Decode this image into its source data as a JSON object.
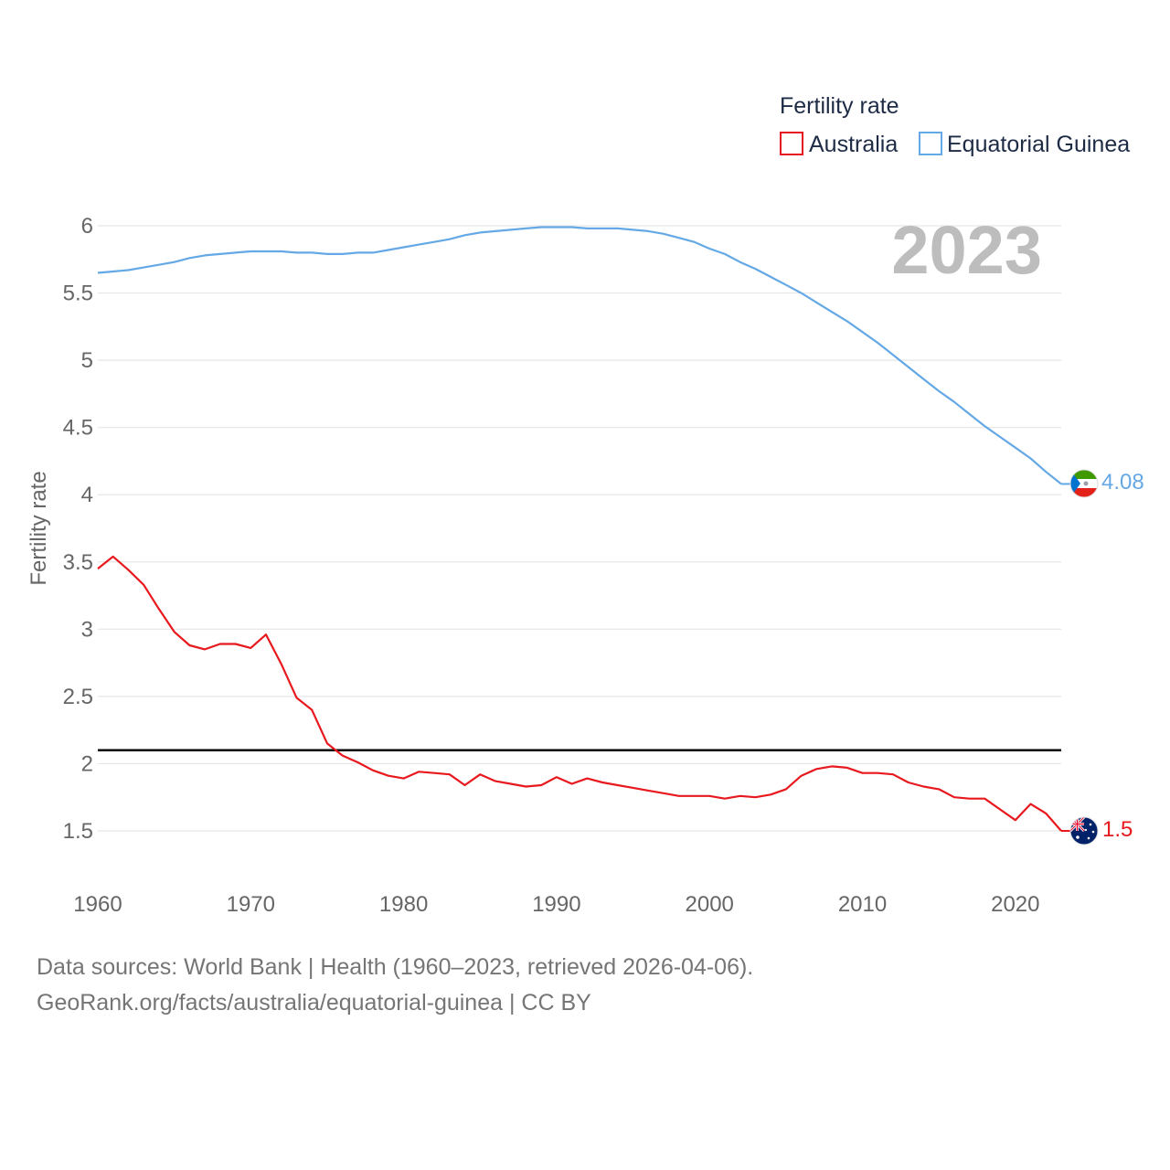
{
  "legend": {
    "title": "Fertility rate",
    "items": [
      {
        "label": "Australia",
        "color": "#e8191e"
      },
      {
        "label": "Equatorial Guinea",
        "color": "#64a8e5"
      }
    ]
  },
  "year_display": "2023",
  "footer": {
    "line1": "Data sources: World Bank | Health (1960–2023, retrieved 2026-04-06).",
    "line2": "GeoRank.org/facts/australia/equatorial-guinea | CC BY"
  },
  "chart_data": {
    "type": "line",
    "title": "Fertility rate",
    "xlabel": "",
    "ylabel": "Fertility rate",
    "xlim": [
      1960,
      2023
    ],
    "ylim": [
      1.2,
      6.15
    ],
    "x_ticks": [
      1960,
      1970,
      1980,
      1990,
      2000,
      2010,
      2020
    ],
    "y_ticks": [
      1.5,
      2,
      2.5,
      3,
      3.5,
      4,
      4.5,
      5,
      5.5,
      6
    ],
    "y_tick_labels": [
      "1.5",
      "2",
      "2.5",
      "3",
      "3.5",
      "4",
      "4.5",
      "5",
      "5.5",
      "6"
    ],
    "reference_line": {
      "y": 2.1,
      "color": "#000000"
    },
    "grid": true,
    "legend_position": "top-right",
    "x": [
      1960,
      1961,
      1962,
      1963,
      1964,
      1965,
      1966,
      1967,
      1968,
      1969,
      1970,
      1971,
      1972,
      1973,
      1974,
      1975,
      1976,
      1977,
      1978,
      1979,
      1980,
      1981,
      1982,
      1983,
      1984,
      1985,
      1986,
      1987,
      1988,
      1989,
      1990,
      1991,
      1992,
      1993,
      1994,
      1995,
      1996,
      1997,
      1998,
      1999,
      2000,
      2001,
      2002,
      2003,
      2004,
      2005,
      2006,
      2007,
      2008,
      2009,
      2010,
      2011,
      2012,
      2013,
      2014,
      2015,
      2016,
      2017,
      2018,
      2019,
      2020,
      2021,
      2022,
      2023
    ],
    "series": [
      {
        "name": "Australia",
        "color": "#e8191e",
        "end_label": "1.5",
        "values": [
          3.45,
          3.54,
          3.44,
          3.33,
          3.15,
          2.98,
          2.88,
          2.85,
          2.89,
          2.89,
          2.86,
          2.96,
          2.74,
          2.49,
          2.4,
          2.15,
          2.06,
          2.01,
          1.95,
          1.91,
          1.89,
          1.94,
          1.93,
          1.92,
          1.84,
          1.92,
          1.87,
          1.85,
          1.83,
          1.84,
          1.9,
          1.85,
          1.89,
          1.86,
          1.84,
          1.82,
          1.8,
          1.78,
          1.76,
          1.76,
          1.76,
          1.74,
          1.76,
          1.75,
          1.77,
          1.81,
          1.91,
          1.96,
          1.98,
          1.97,
          1.93,
          1.93,
          1.92,
          1.86,
          1.83,
          1.81,
          1.75,
          1.74,
          1.74,
          1.66,
          1.58,
          1.7,
          1.63,
          1.5
        ]
      },
      {
        "name": "Equatorial Guinea",
        "color": "#64a8e5",
        "end_label": "4.08",
        "values": [
          5.65,
          5.66,
          5.67,
          5.69,
          5.71,
          5.73,
          5.76,
          5.78,
          5.79,
          5.8,
          5.81,
          5.81,
          5.81,
          5.8,
          5.8,
          5.79,
          5.79,
          5.8,
          5.8,
          5.82,
          5.84,
          5.86,
          5.88,
          5.9,
          5.93,
          5.95,
          5.96,
          5.97,
          5.98,
          5.99,
          5.99,
          5.99,
          5.98,
          5.98,
          5.98,
          5.97,
          5.96,
          5.94,
          5.91,
          5.88,
          5.83,
          5.79,
          5.73,
          5.68,
          5.62,
          5.56,
          5.5,
          5.43,
          5.36,
          5.29,
          5.21,
          5.13,
          5.04,
          4.95,
          4.86,
          4.77,
          4.69,
          4.6,
          4.51,
          4.43,
          4.35,
          4.27,
          4.17,
          4.08
        ]
      }
    ]
  }
}
